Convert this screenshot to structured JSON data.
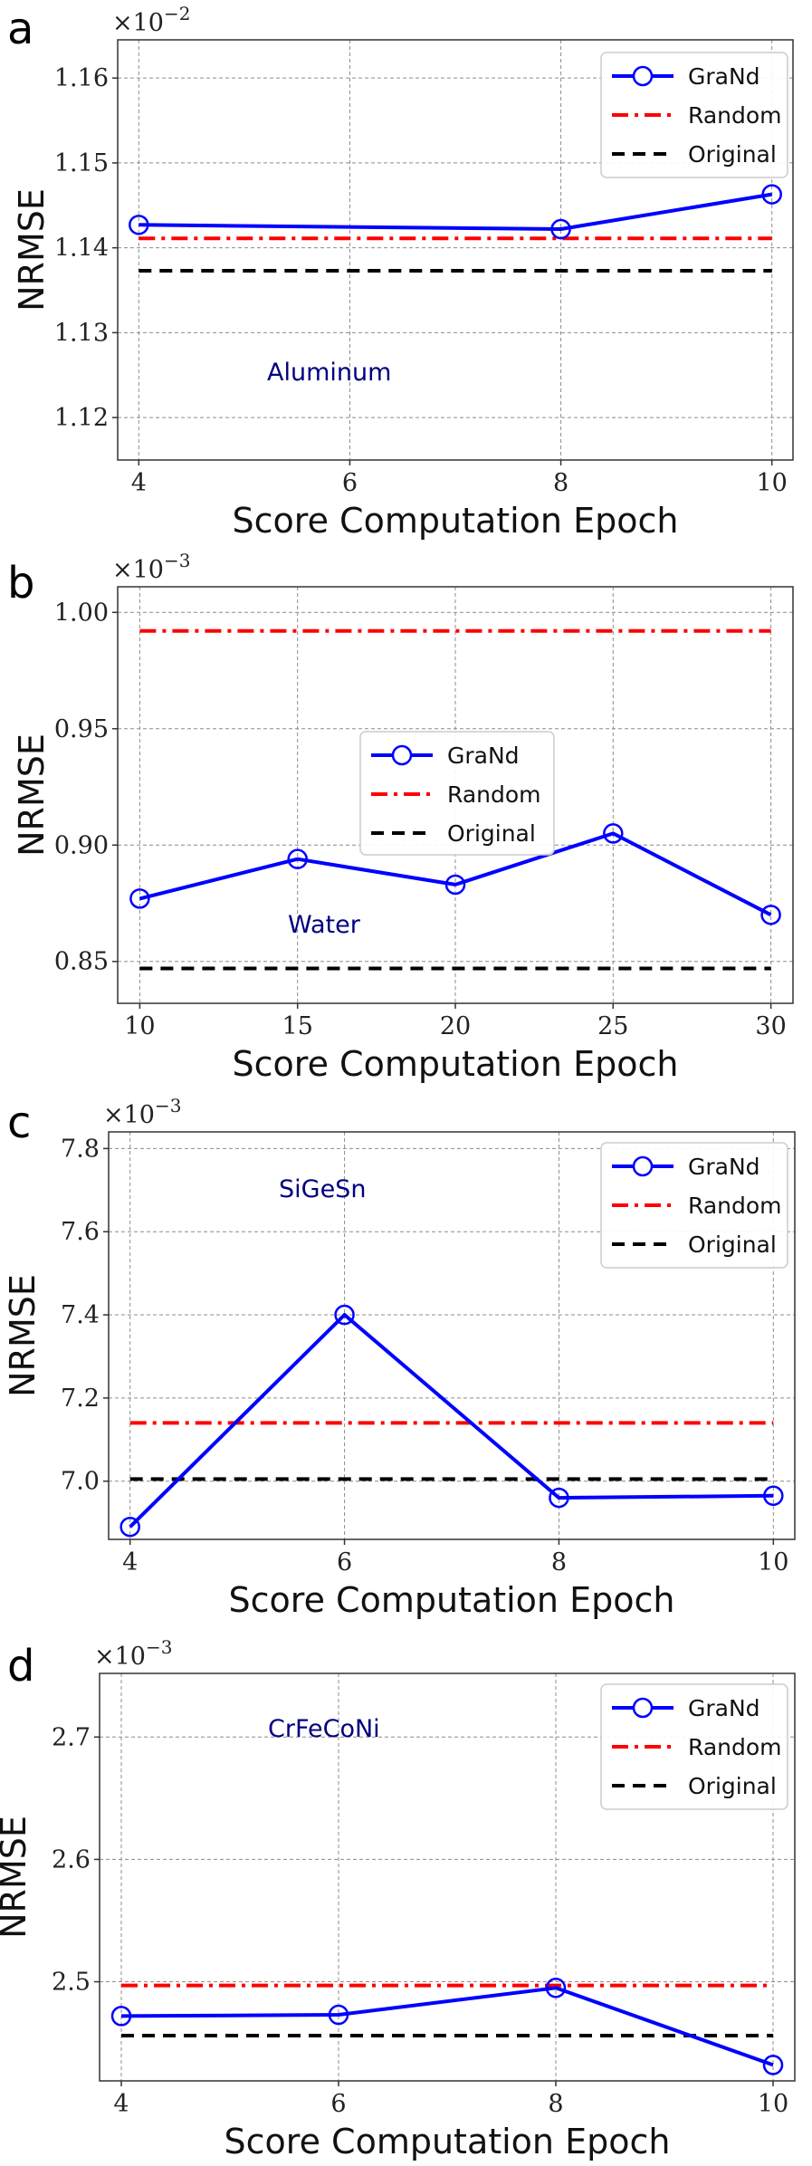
{
  "chart_data": [
    {
      "panel": "a",
      "type": "line",
      "xlabel": "Score Computation Epoch",
      "ylabel": "NRMSE",
      "multiplier": "×10",
      "multiplier_exp": "−2",
      "annotation": "Aluminum",
      "x": [
        4,
        6,
        8,
        10
      ],
      "xlim": [
        3.8,
        10.2
      ],
      "ylim": [
        1.115,
        1.1645
      ],
      "xticks": [
        4,
        6,
        8,
        10
      ],
      "xtick_labels": [
        "4",
        "6",
        "8",
        "10"
      ],
      "yticks": [
        1.12,
        1.13,
        1.14,
        1.15,
        1.16
      ],
      "ytick_labels": [
        "1.12",
        "1.13",
        "1.14",
        "1.15",
        "1.16"
      ],
      "legend": "top-right",
      "series": [
        {
          "name": "GraNd",
          "x": [
            4,
            8,
            10
          ],
          "values": [
            1.1427,
            1.1422,
            1.1463
          ],
          "color": "#0000ff",
          "style": "solid",
          "marker": "circle"
        },
        {
          "name": "Random",
          "x": [
            4,
            10
          ],
          "values": [
            1.1411,
            1.1411
          ],
          "color": "#ff0000",
          "style": "dashdot"
        },
        {
          "name": "Original",
          "x": [
            4,
            10
          ],
          "values": [
            1.1373,
            1.1373
          ],
          "color": "#000000",
          "style": "dashed"
        }
      ]
    },
    {
      "panel": "b",
      "type": "line",
      "xlabel": "Score Computation Epoch",
      "ylabel": "NRMSE",
      "multiplier": "×10",
      "multiplier_exp": "−3",
      "annotation": "Water",
      "x": [
        10,
        15,
        20,
        25,
        30
      ],
      "xlim": [
        9.3,
        30.7
      ],
      "ylim": [
        0.832,
        1.011
      ],
      "xticks": [
        10,
        15,
        20,
        25,
        30
      ],
      "xtick_labels": [
        "10",
        "15",
        "20",
        "25",
        "30"
      ],
      "yticks": [
        0.85,
        0.9,
        0.95,
        1.0
      ],
      "ytick_labels": [
        "0.85",
        "0.90",
        "0.95",
        "1.00"
      ],
      "legend": "center",
      "series": [
        {
          "name": "GraNd",
          "x": [
            10,
            15,
            20,
            25,
            30
          ],
          "values": [
            0.877,
            0.894,
            0.883,
            0.905,
            0.87
          ],
          "color": "#0000ff",
          "style": "solid",
          "marker": "circle"
        },
        {
          "name": "Random",
          "x": [
            10,
            30
          ],
          "values": [
            0.992,
            0.992
          ],
          "color": "#ff0000",
          "style": "dashdot"
        },
        {
          "name": "Original",
          "x": [
            10,
            30
          ],
          "values": [
            0.847,
            0.847
          ],
          "color": "#000000",
          "style": "dashed"
        }
      ]
    },
    {
      "panel": "c",
      "type": "line",
      "xlabel": "Score Computation Epoch",
      "ylabel": "NRMSE",
      "multiplier": "×10",
      "multiplier_exp": "−3",
      "annotation": "SiGeSn",
      "x": [
        4,
        6,
        8,
        10
      ],
      "xlim": [
        3.8,
        10.2
      ],
      "ylim": [
        6.86,
        7.84
      ],
      "xticks": [
        4,
        6,
        8,
        10
      ],
      "xtick_labels": [
        "4",
        "6",
        "8",
        "10"
      ],
      "yticks": [
        7.0,
        7.2,
        7.4,
        7.6,
        7.8
      ],
      "ytick_labels": [
        "7.0",
        "7.2",
        "7.4",
        "7.6",
        "7.8"
      ],
      "legend": "top-right",
      "series": [
        {
          "name": "GraNd",
          "x": [
            4,
            6,
            8,
            10
          ],
          "values": [
            6.89,
            7.4,
            6.96,
            6.965
          ],
          "color": "#0000ff",
          "style": "solid",
          "marker": "circle"
        },
        {
          "name": "Random",
          "x": [
            4,
            10
          ],
          "values": [
            7.14,
            7.14
          ],
          "color": "#ff0000",
          "style": "dashdot"
        },
        {
          "name": "Original",
          "x": [
            4,
            10
          ],
          "values": [
            7.005,
            7.005
          ],
          "color": "#000000",
          "style": "dashed"
        }
      ]
    },
    {
      "panel": "d",
      "type": "line",
      "xlabel": "Score Computation Epoch",
      "ylabel": "NRMSE",
      "multiplier": "×10",
      "multiplier_exp": "−3",
      "annotation": "CrFeCoNi",
      "x": [
        4,
        6,
        8,
        10
      ],
      "xlim": [
        3.8,
        10.2
      ],
      "ylim": [
        2.419,
        2.752
      ],
      "xticks": [
        4,
        6,
        8,
        10
      ],
      "xtick_labels": [
        "4",
        "6",
        "8",
        "10"
      ],
      "yticks": [
        2.5,
        2.6,
        2.7
      ],
      "ytick_labels": [
        "2.5",
        "2.6",
        "2.7"
      ],
      "legend": "top-right",
      "series": [
        {
          "name": "GraNd",
          "x": [
            4,
            6,
            8,
            10
          ],
          "values": [
            2.472,
            2.473,
            2.495,
            2.432
          ],
          "color": "#0000ff",
          "style": "solid",
          "marker": "circle"
        },
        {
          "name": "Random",
          "x": [
            4,
            10
          ],
          "values": [
            2.497,
            2.497
          ],
          "color": "#ff0000",
          "style": "dashdot"
        },
        {
          "name": "Original",
          "x": [
            4,
            10
          ],
          "values": [
            2.456,
            2.456
          ],
          "color": "#000000",
          "style": "dashed"
        }
      ]
    }
  ]
}
